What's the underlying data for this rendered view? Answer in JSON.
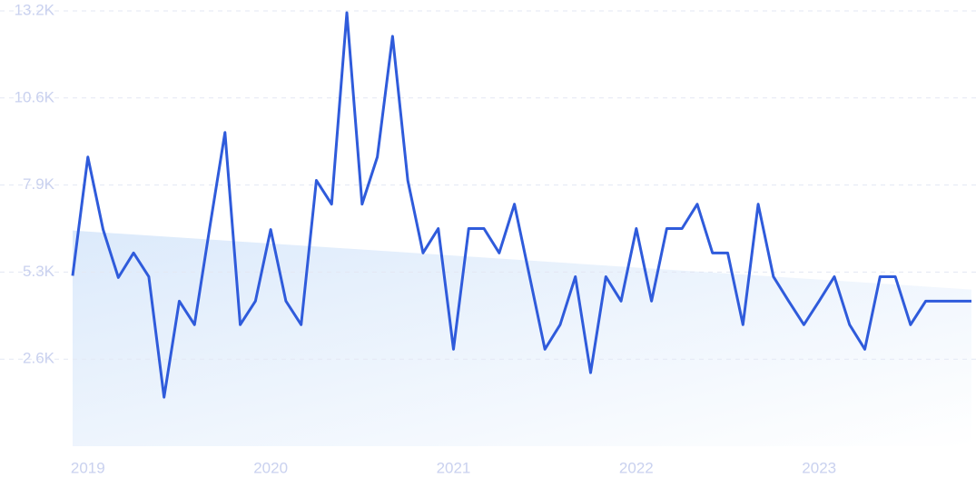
{
  "chart_data": {
    "type": "line",
    "categories": [
      null,
      "2019",
      null,
      null,
      null,
      null,
      null,
      null,
      null,
      null,
      null,
      null,
      null,
      "2020",
      null,
      null,
      null,
      null,
      null,
      null,
      null,
      null,
      null,
      null,
      null,
      "2021",
      null,
      null,
      null,
      null,
      null,
      null,
      null,
      null,
      null,
      null,
      null,
      "2022",
      null,
      null,
      null,
      null,
      null,
      null,
      null,
      null,
      null,
      null,
      null,
      "2023",
      null,
      null,
      null,
      null,
      null,
      null,
      null,
      null,
      null,
      null
    ],
    "series": [
      {
        "color": "#2f5bdb",
        "values": [
          5170,
          8770,
          6570,
          5115,
          5860,
          5140,
          1485,
          4400,
          3685,
          6630,
          9515,
          3685,
          4400,
          6570,
          4400,
          3685,
          8060,
          7340,
          13145,
          7340,
          8770,
          12430,
          8060,
          5860,
          6600,
          2940,
          6600,
          6600,
          5860,
          7340,
          5140,
          2940,
          3685,
          5140,
          2230,
          5140,
          4400,
          6600,
          4400,
          6600,
          6600,
          7340,
          5860,
          5860,
          3685,
          7340,
          5140,
          4400,
          3685,
          4400,
          5140,
          3685,
          2940,
          5140,
          5140,
          3685,
          4400,
          4400,
          4400,
          4400
        ]
      }
    ],
    "trend": [
      6540,
      4750
    ],
    "ylim": [
      0,
      13200
    ],
    "yticks": [
      {
        "value": 2640,
        "label": "2.6K"
      },
      {
        "value": 5280,
        "label": "5.3K"
      },
      {
        "value": 7920,
        "label": "7.9K"
      },
      {
        "value": 10560,
        "label": "10.6K"
      },
      {
        "value": 13200,
        "label": "13.2K"
      }
    ],
    "grid": true
  }
}
